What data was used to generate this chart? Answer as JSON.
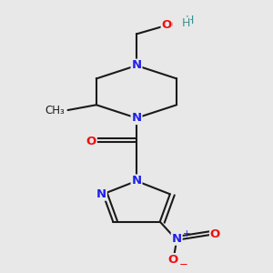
{
  "background_color": "#e8e8e8",
  "bond_color": "#1a1a1a",
  "N_color": "#2020ee",
  "O_color": "#ee1010",
  "H_color": "#3a9090",
  "figsize": [
    3.0,
    3.0
  ],
  "dpi": 100,
  "xlim": [
    0.1,
    0.9
  ],
  "ylim": [
    0.02,
    1.02
  ]
}
